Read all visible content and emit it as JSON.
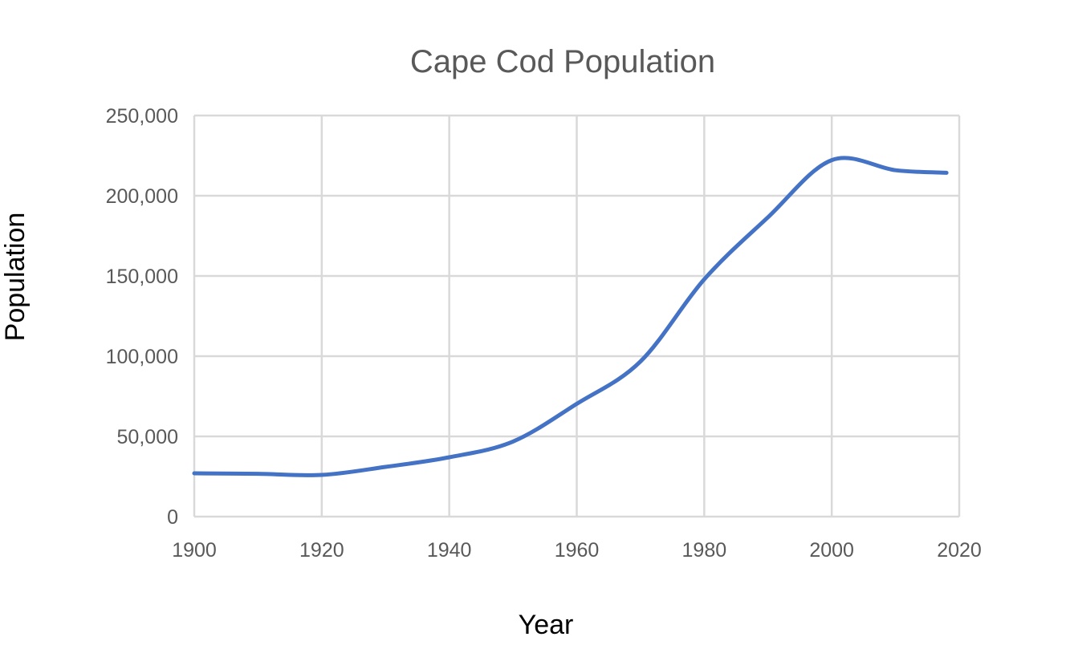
{
  "chart_data": {
    "type": "line",
    "title": "Cape Cod Population",
    "xlabel": "Year",
    "ylabel": "Population",
    "xlim": [
      1900,
      2020
    ],
    "ylim": [
      0,
      250000
    ],
    "x_ticks": [
      1900,
      1920,
      1940,
      1960,
      1980,
      2000,
      2020
    ],
    "x_tick_labels": [
      "1900",
      "1920",
      "1940",
      "1960",
      "1980",
      "2000",
      "2020"
    ],
    "y_ticks": [
      0,
      50000,
      100000,
      150000,
      200000,
      250000
    ],
    "y_tick_labels": [
      "0",
      "50,000",
      "100,000",
      "150,000",
      "200,000",
      "250,000"
    ],
    "grid": true,
    "series": [
      {
        "color": "#4472c4",
        "smooth": true,
        "x": [
          1900,
          1910,
          1920,
          1930,
          1940,
          1950,
          1960,
          1970,
          1980,
          1990,
          2000,
          2010,
          2018
        ],
        "y": [
          27000,
          26700,
          26000,
          31000,
          37000,
          46800,
          70300,
          96700,
          147900,
          186600,
          222200,
          215900,
          214300
        ]
      }
    ]
  }
}
